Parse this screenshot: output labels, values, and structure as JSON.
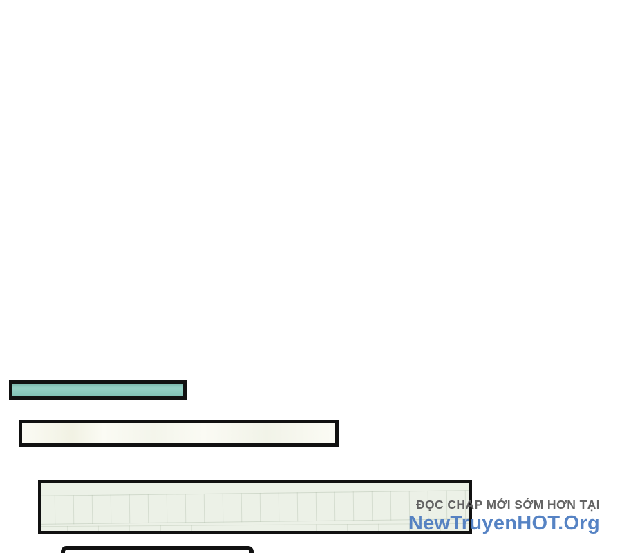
{
  "colors": {
    "page-bg": "#ffffff",
    "panel-border": "#111111",
    "teal-fill": "#87cabd",
    "light-fill": "#fbfbf4",
    "big-fill": "#ecf1e7",
    "watermark-gray": "#5c5c5c",
    "watermark-blue": "#4e7dc1"
  },
  "watermark": {
    "line1": "ĐỌC CHAP MỚI SỚM HƠN TẠI",
    "line2": "NewTruyenHOT.Org"
  },
  "artwork": {
    "panels": [
      {
        "name": "teal-plank",
        "fill": "#87cabd"
      },
      {
        "name": "light-plank",
        "fill": "#fbfbf4"
      },
      {
        "name": "large-textured-plank",
        "fill": "#ecf1e7"
      },
      {
        "name": "bottom-plank-partial",
        "fill": "#ffffff"
      }
    ]
  }
}
